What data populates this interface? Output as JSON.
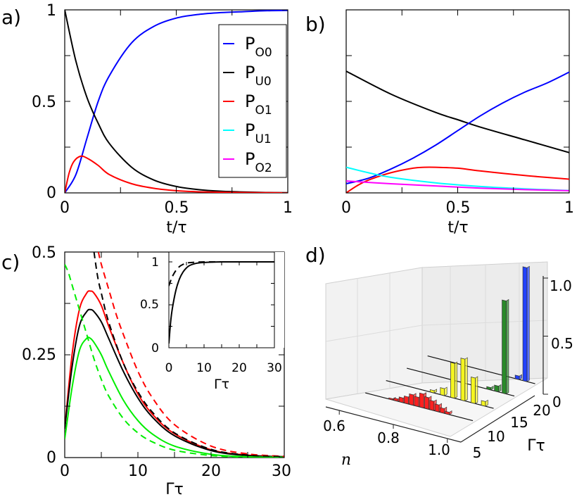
{
  "chart_data": [
    {
      "panel_label": "a)",
      "type": "line",
      "xlabel": "t/τ",
      "xlim": [
        0,
        1
      ],
      "ylim": [
        0,
        1
      ],
      "xticks": [
        "0",
        "0.5",
        "1"
      ],
      "yticks": [
        "0",
        "0.5",
        "1"
      ],
      "legend": {
        "placement": "top-right",
        "entries": [
          {
            "base": "P",
            "sub": "O0",
            "color": "#0000ff"
          },
          {
            "base": "P",
            "sub": "U0",
            "color": "#000000"
          },
          {
            "base": "P",
            "sub": "O1",
            "color": "#ff0000"
          },
          {
            "base": "P",
            "sub": "U1",
            "color": "#00ffff"
          },
          {
            "base": "P",
            "sub": "O2",
            "color": "#ff00ff"
          }
        ]
      },
      "series": [
        {
          "name": "P_O0",
          "color": "#0000ff",
          "x": [
            0,
            0.05,
            0.1,
            0.15,
            0.2,
            0.3,
            0.4,
            0.5,
            0.6,
            0.7,
            0.8,
            0.9,
            1.0
          ],
          "y": [
            0,
            0.1,
            0.3,
            0.5,
            0.64,
            0.82,
            0.91,
            0.955,
            0.975,
            0.985,
            0.99,
            0.995,
            0.997
          ]
        },
        {
          "name": "P_U0",
          "color": "#000000",
          "x": [
            0,
            0.05,
            0.1,
            0.15,
            0.2,
            0.3,
            0.4,
            0.5,
            0.6,
            0.7,
            0.8,
            0.9,
            1.0
          ],
          "y": [
            1.0,
            0.72,
            0.52,
            0.38,
            0.27,
            0.14,
            0.07,
            0.035,
            0.018,
            0.009,
            0.005,
            0.002,
            0.001
          ]
        },
        {
          "name": "P_O1",
          "color": "#ff0000",
          "x": [
            0,
            0.02,
            0.04,
            0.07,
            0.1,
            0.15,
            0.2,
            0.3,
            0.4,
            0.5,
            0.6,
            0.8,
            1.0
          ],
          "y": [
            0,
            0.11,
            0.17,
            0.2,
            0.19,
            0.15,
            0.1,
            0.05,
            0.025,
            0.012,
            0.006,
            0.002,
            0.0
          ]
        }
      ]
    },
    {
      "panel_label": "b)",
      "type": "line",
      "xlabel": "t/τ",
      "xlim": [
        0,
        1
      ],
      "ylim": [
        0,
        1
      ],
      "xticks": [
        "0",
        "0.5",
        "1"
      ],
      "series": [
        {
          "name": "P_U0",
          "color": "#000000",
          "x": [
            0,
            0.2,
            0.4,
            0.5,
            0.6,
            0.8,
            1.0
          ],
          "y": [
            0.665,
            0.54,
            0.44,
            0.4,
            0.36,
            0.29,
            0.22
          ]
        },
        {
          "name": "P_O0",
          "color": "#0000ff",
          "x": [
            0,
            0.1,
            0.2,
            0.3,
            0.4,
            0.5,
            0.6,
            0.7,
            0.8,
            0.9,
            1.0
          ],
          "y": [
            0.05,
            0.08,
            0.13,
            0.19,
            0.26,
            0.34,
            0.42,
            0.49,
            0.55,
            0.6,
            0.66
          ]
        },
        {
          "name": "P_O1",
          "color": "#ff0000",
          "x": [
            0,
            0.05,
            0.1,
            0.2,
            0.3,
            0.35,
            0.4,
            0.5,
            0.6,
            0.8,
            1.0
          ],
          "y": [
            0.0,
            0.04,
            0.07,
            0.11,
            0.135,
            0.14,
            0.14,
            0.135,
            0.12,
            0.095,
            0.075
          ]
        },
        {
          "name": "P_U1",
          "color": "#00ffff",
          "x": [
            0,
            0.1,
            0.2,
            0.4,
            0.6,
            0.8,
            1.0
          ],
          "y": [
            0.14,
            0.11,
            0.085,
            0.055,
            0.035,
            0.022,
            0.013
          ]
        },
        {
          "name": "P_O2",
          "color": "#ff00ff",
          "x": [
            0,
            0.2,
            0.4,
            0.6,
            0.8,
            1.0
          ],
          "y": [
            0.065,
            0.05,
            0.038,
            0.026,
            0.018,
            0.012
          ]
        }
      ]
    },
    {
      "panel_label": "c)",
      "type": "line",
      "xlabel": "Γτ",
      "xlim": [
        0,
        30
      ],
      "ylim": [
        0,
        0.5
      ],
      "xticks": [
        "0",
        "10",
        "20",
        "30"
      ],
      "yticks": [
        "0",
        "0.25",
        "0.5"
      ],
      "series": [
        {
          "name": "red solid",
          "color": "#ff0000",
          "dash": false,
          "x": [
            0,
            1,
            2,
            3,
            3.5,
            4,
            5,
            6,
            8,
            10,
            12,
            15,
            20,
            25,
            30
          ],
          "y": [
            0.07,
            0.25,
            0.36,
            0.4,
            0.405,
            0.4,
            0.37,
            0.32,
            0.23,
            0.155,
            0.105,
            0.058,
            0.019,
            0.006,
            0.002
          ]
        },
        {
          "name": "black solid",
          "color": "#000000",
          "dash": false,
          "x": [
            0,
            1,
            2,
            3,
            3.5,
            4,
            5,
            6,
            8,
            10,
            12,
            15,
            20,
            25,
            30
          ],
          "y": [
            0.07,
            0.22,
            0.32,
            0.355,
            0.36,
            0.355,
            0.33,
            0.29,
            0.21,
            0.145,
            0.098,
            0.053,
            0.017,
            0.005,
            0.002
          ]
        },
        {
          "name": "green solid",
          "color": "#00ee00",
          "dash": false,
          "x": [
            0,
            1,
            2,
            3,
            3.5,
            4,
            5,
            6,
            8,
            10,
            12,
            15,
            20,
            25,
            30
          ],
          "y": [
            0.045,
            0.17,
            0.26,
            0.29,
            0.29,
            0.28,
            0.25,
            0.21,
            0.14,
            0.09,
            0.057,
            0.028,
            0.008,
            0.002,
            0.001
          ]
        },
        {
          "name": "red dashed",
          "color": "#ff0000",
          "dash": true,
          "x": [
            4.6,
            5,
            6,
            7,
            8,
            10,
            12,
            15,
            20,
            25,
            30
          ],
          "y": [
            0.5,
            0.47,
            0.41,
            0.35,
            0.3,
            0.21,
            0.145,
            0.08,
            0.028,
            0.009,
            0.003
          ]
        },
        {
          "name": "black dashed",
          "color": "#000000",
          "dash": true,
          "x": [
            4.0,
            4.5,
            5,
            6,
            8,
            10,
            12,
            15,
            20,
            25,
            30
          ],
          "y": [
            0.5,
            0.44,
            0.4,
            0.33,
            0.23,
            0.16,
            0.11,
            0.06,
            0.02,
            0.006,
            0.002
          ]
        },
        {
          "name": "green dashed",
          "color": "#00ee00",
          "dash": true,
          "x": [
            0,
            0.5,
            1,
            2,
            3,
            4,
            5,
            6,
            8,
            10,
            12,
            15,
            20,
            25,
            30
          ],
          "y": [
            0.47,
            0.45,
            0.42,
            0.36,
            0.3,
            0.24,
            0.19,
            0.15,
            0.095,
            0.06,
            0.038,
            0.018,
            0.005,
            0.001,
            0.0
          ]
        }
      ],
      "inset": {
        "xlabel": "Γτ",
        "xlim": [
          0,
          30
        ],
        "ylim": [
          0,
          1
        ],
        "xticks": [
          "0",
          "10",
          "20",
          "30"
        ],
        "yticks": [
          "0",
          "0.5",
          "1"
        ],
        "series": [
          {
            "name": "inset solid",
            "color": "#000000",
            "dash": false,
            "x": [
              0,
              0.5,
              1,
              2,
              3,
              4,
              5,
              6,
              8,
              10,
              12,
              15,
              20,
              25,
              30
            ],
            "y": [
              0.05,
              0.3,
              0.46,
              0.67,
              0.8,
              0.88,
              0.93,
              0.96,
              0.985,
              0.993,
              0.997,
              1.0,
              1.0,
              1.0,
              1.0
            ]
          },
          {
            "name": "inset dashed",
            "color": "#000000",
            "dash": true,
            "x": [
              0,
              0.5,
              1,
              2,
              3,
              4,
              5,
              6,
              8,
              10,
              15,
              20,
              30
            ],
            "y": [
              0.72,
              0.78,
              0.83,
              0.9,
              0.945,
              0.97,
              0.985,
              0.992,
              0.997,
              1.0,
              1.0,
              1.0,
              1.0
            ]
          }
        ]
      }
    },
    {
      "panel_label": "d)",
      "type": "bar3d",
      "xlabel": "n",
      "ylabel": "Γτ",
      "n_ticks": [
        "0.6",
        "0.8",
        "1.0"
      ],
      "gamma_ticks": [
        "5",
        "10",
        "15",
        "20"
      ],
      "z_ticks": [
        "0",
        "0.5",
        "1.0"
      ],
      "rows": [
        {
          "gamma": 5,
          "color": "#ff2020",
          "n": [
            0.72,
            0.74,
            0.76,
            0.78,
            0.8,
            0.82,
            0.84,
            0.86,
            0.88,
            0.9,
            0.92,
            0.94
          ],
          "values": [
            0.01,
            0.02,
            0.04,
            0.06,
            0.09,
            0.08,
            0.12,
            0.1,
            0.08,
            0.06,
            0.04,
            0.02
          ]
        },
        {
          "gamma": 10,
          "color": "#f5f520",
          "n": [
            0.8,
            0.84,
            0.88,
            0.92,
            0.96,
            1.0
          ],
          "values": [
            0.02,
            0.06,
            0.3,
            0.36,
            0.22,
            0.04
          ]
        },
        {
          "gamma": 15,
          "color": "#2a8a2a",
          "n": [
            0.94,
            0.97,
            1.0
          ],
          "values": [
            0.02,
            0.05,
            0.8
          ]
        },
        {
          "gamma": 20,
          "color": "#2040ff",
          "n": [
            0.97,
            1.0
          ],
          "values": [
            0.03,
            0.98
          ]
        }
      ]
    }
  ]
}
